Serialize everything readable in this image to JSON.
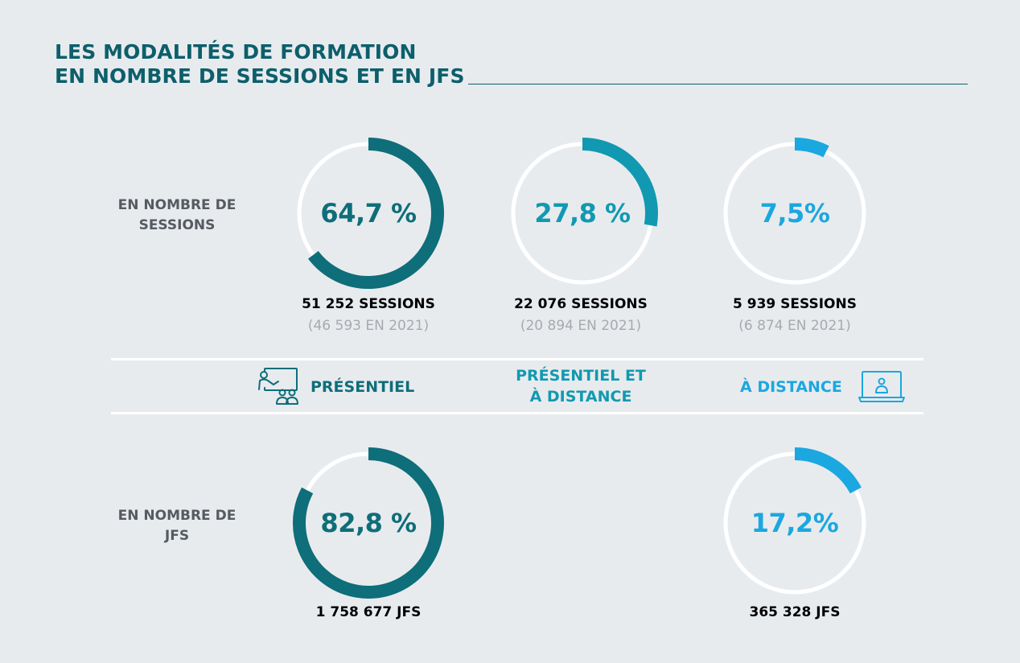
{
  "title": {
    "line1": "LES MODALITÉS DE FORMATION",
    "line2": "EN NOMBRE DE SESSIONS ET EN JFS"
  },
  "rows": {
    "sessions": {
      "line1": "EN NOMBRE DE",
      "line2": "SESSIONS"
    },
    "jfs": {
      "line1": "EN NOMBRE DE",
      "line2": "JFS"
    }
  },
  "modes": {
    "presentiel": {
      "label": "PRÉSENTIEL",
      "icon": "classroom-icon"
    },
    "mixte": {
      "line1": "PRÉSENTIEL ET",
      "line2": "À DISTANCE"
    },
    "distance": {
      "label": "À DISTANCE",
      "icon": "laptop-user-icon"
    }
  },
  "colors": {
    "presentiel": "#0e6e79",
    "mixte": "#1199b1",
    "distance": "#1ba7e0",
    "track": "#ffffff",
    "title": "#0c5f6b"
  },
  "chart_data": [
    {
      "type": "pie",
      "group": "sessions",
      "categories": [
        "PRÉSENTIEL",
        "PRÉSENTIEL ET À DISTANCE",
        "À DISTANCE"
      ],
      "values": [
        64.7,
        27.8,
        7.5
      ],
      "labels": [
        "64,7 %",
        "27,8 %",
        "7,5%"
      ],
      "counts": [
        "51 252 SESSIONS",
        "22 076 SESSIONS",
        "5 939 SESSIONS"
      ],
      "previous": [
        "(46 593 EN 2021)",
        "(20 894 EN 2021)",
        "(6 874 EN 2021)"
      ]
    },
    {
      "type": "pie",
      "group": "jfs",
      "categories": [
        "PRÉSENTIEL",
        "À DISTANCE"
      ],
      "values": [
        82.8,
        17.2
      ],
      "labels": [
        "82,8 %",
        "17,2%"
      ],
      "counts": [
        "1 758 677 JFS",
        "365 328 JFS"
      ]
    }
  ]
}
